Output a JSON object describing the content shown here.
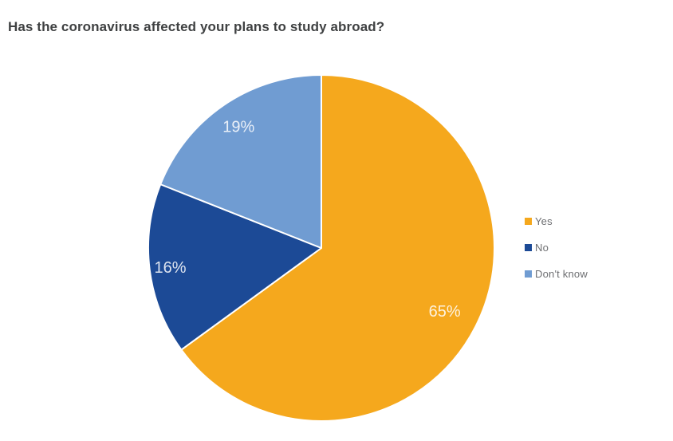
{
  "title": "Has the coronavirus affected your plans to study abroad?",
  "chart_data": {
    "type": "pie",
    "title": "Has the coronavirus affected your plans to study abroad?",
    "categories": [
      "Yes",
      "No",
      "Don't know"
    ],
    "values": [
      65,
      16,
      19
    ],
    "unit": "%",
    "series": [
      {
        "label": "Yes",
        "value": 65,
        "display": "65%",
        "color": "#F5A81D"
      },
      {
        "label": "No",
        "value": 16,
        "display": "16%",
        "color": "#1C4A96"
      },
      {
        "label": "Don't know",
        "value": 19,
        "display": "19%",
        "color": "#709CD2"
      }
    ],
    "start_angle_deg": 0,
    "direction": "clockwise",
    "legend_position": "right",
    "separator_color": "#ffffff",
    "slice_label_color": "rgba(255,255,255,0.85)"
  },
  "style": {
    "background": "#ffffff",
    "title_color": "#3F4142",
    "legend_text_color": "#6D6E71"
  }
}
